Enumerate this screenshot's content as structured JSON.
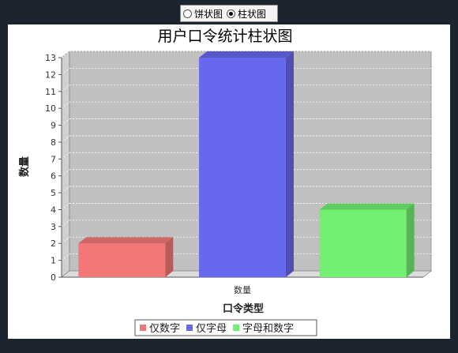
{
  "chart_selector": {
    "options": [
      {
        "label": "饼状图",
        "selected": false
      },
      {
        "label": "柱状图",
        "selected": true
      }
    ]
  },
  "chart_data": {
    "type": "bar",
    "title": "用户口令统计柱状图",
    "xlabel": "口令类型",
    "ylabel": "数量",
    "categories": [
      "数量"
    ],
    "series": [
      {
        "name": "仅数字",
        "values": [
          2
        ],
        "color": "#f27878"
      },
      {
        "name": "仅字母",
        "values": [
          13
        ],
        "color": "#6868ee"
      },
      {
        "name": "字母和数字",
        "values": [
          4
        ],
        "color": "#72f072"
      }
    ],
    "ylim": [
      0,
      13
    ],
    "yticks": [
      0,
      1,
      2,
      3,
      4,
      5,
      6,
      7,
      8,
      9,
      10,
      11,
      12,
      13
    ],
    "grid": true,
    "legend_position": "bottom"
  }
}
